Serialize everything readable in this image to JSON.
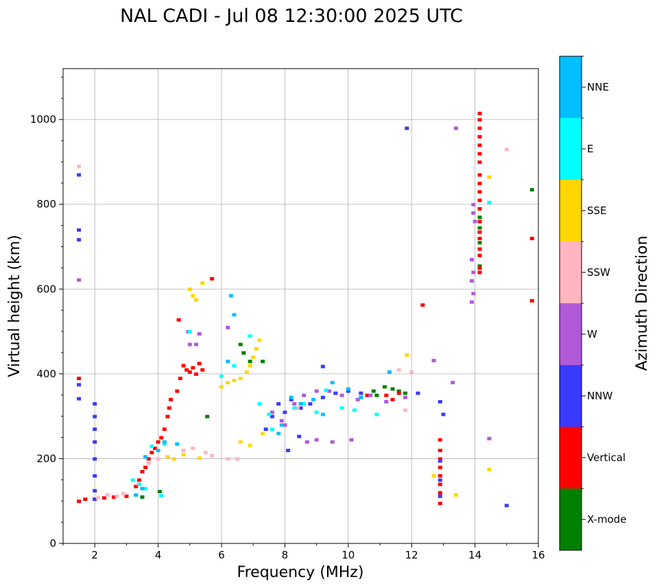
{
  "chart_data": {
    "type": "scatter",
    "title": "NAL CADI - Jul 08 12:30:00 2025 UTC",
    "xlabel": "Frequency (MHz)",
    "ylabel": "Virtual height (km)",
    "xlim": [
      1,
      16
    ],
    "ylim": [
      0,
      1120
    ],
    "xticks": [
      2,
      4,
      6,
      8,
      10,
      12,
      14,
      16
    ],
    "yticks": [
      0,
      200,
      400,
      600,
      800,
      1000
    ],
    "grid": true,
    "colorbar": {
      "label": "Azimuth Direction",
      "categories": [
        {
          "name": "X-mode",
          "color": "#008000"
        },
        {
          "name": "Vertical",
          "color": "#ff0000"
        },
        {
          "name": "NNW",
          "color": "#3a3aff"
        },
        {
          "name": "W",
          "color": "#b05ad8"
        },
        {
          "name": "SSW",
          "color": "#ffb6c1"
        },
        {
          "name": "SSE",
          "color": "#ffd700"
        },
        {
          "name": "E",
          "color": "#00ffff"
        },
        {
          "name": "NNE",
          "color": "#00bfff"
        }
      ]
    },
    "series": [
      {
        "name": "X-mode",
        "points": [
          [
            3.5,
            110
          ],
          [
            4.05,
            123
          ],
          [
            5.55,
            300
          ],
          [
            6.6,
            470
          ],
          [
            6.7,
            450
          ],
          [
            6.9,
            430
          ],
          [
            7.3,
            430
          ],
          [
            10.8,
            360
          ],
          [
            10.9,
            350
          ],
          [
            11.15,
            370
          ],
          [
            11.4,
            365
          ],
          [
            11.6,
            360
          ],
          [
            11.8,
            355
          ],
          [
            14.15,
            770
          ],
          [
            14.15,
            745
          ],
          [
            14.15,
            710
          ],
          [
            14.15,
            655
          ],
          [
            15.8,
            835
          ]
        ]
      },
      {
        "name": "Vertical",
        "points": [
          [
            1.5,
            100
          ],
          [
            1.7,
            105
          ],
          [
            2.0,
            105
          ],
          [
            2.3,
            108
          ],
          [
            2.6,
            110
          ],
          [
            3.0,
            112
          ],
          [
            3.3,
            135
          ],
          [
            3.4,
            150
          ],
          [
            3.5,
            170
          ],
          [
            3.6,
            180
          ],
          [
            3.7,
            200
          ],
          [
            3.8,
            215
          ],
          [
            3.9,
            225
          ],
          [
            4.0,
            240
          ],
          [
            4.1,
            250
          ],
          [
            4.2,
            270
          ],
          [
            4.3,
            300
          ],
          [
            4.35,
            320
          ],
          [
            4.4,
            340
          ],
          [
            4.6,
            360
          ],
          [
            4.7,
            390
          ],
          [
            4.8,
            420
          ],
          [
            4.9,
            410
          ],
          [
            5.0,
            405
          ],
          [
            5.1,
            415
          ],
          [
            5.2,
            400
          ],
          [
            5.3,
            425
          ],
          [
            5.4,
            410
          ],
          [
            4.65,
            528
          ],
          [
            5.7,
            625
          ],
          [
            1.5,
            390
          ],
          [
            11.2,
            350
          ],
          [
            11.4,
            340
          ],
          [
            11.6,
            355
          ],
          [
            10.6,
            350
          ],
          [
            12.35,
            563
          ],
          [
            12.9,
            220
          ],
          [
            12.9,
            200
          ],
          [
            12.9,
            180
          ],
          [
            12.9,
            160
          ],
          [
            12.9,
            140
          ],
          [
            12.9,
            120
          ],
          [
            12.9,
            95
          ],
          [
            12.9,
            245
          ],
          [
            14.15,
            1015
          ],
          [
            14.15,
            1000
          ],
          [
            14.15,
            980
          ],
          [
            14.15,
            960
          ],
          [
            14.15,
            940
          ],
          [
            14.15,
            920
          ],
          [
            14.15,
            900
          ],
          [
            14.15,
            870
          ],
          [
            14.15,
            850
          ],
          [
            14.15,
            830
          ],
          [
            14.15,
            810
          ],
          [
            14.15,
            790
          ],
          [
            14.15,
            760
          ],
          [
            14.15,
            735
          ],
          [
            14.15,
            720
          ],
          [
            14.15,
            695
          ],
          [
            14.15,
            680
          ],
          [
            14.15,
            650
          ],
          [
            14.15,
            640
          ],
          [
            15.8,
            720
          ],
          [
            15.8,
            573
          ]
        ]
      },
      {
        "name": "NNW",
        "points": [
          [
            1.5,
            870
          ],
          [
            1.5,
            740
          ],
          [
            1.5,
            717
          ],
          [
            1.5,
            375
          ],
          [
            1.5,
            342
          ],
          [
            2.0,
            330
          ],
          [
            2.0,
            300
          ],
          [
            2.0,
            270
          ],
          [
            2.0,
            240
          ],
          [
            2.0,
            200
          ],
          [
            2.0,
            160
          ],
          [
            2.0,
            125
          ],
          [
            2.0,
            105
          ],
          [
            7.4,
            270
          ],
          [
            7.6,
            300
          ],
          [
            7.8,
            330
          ],
          [
            8.0,
            310
          ],
          [
            8.2,
            340
          ],
          [
            8.5,
            320
          ],
          [
            8.8,
            330
          ],
          [
            9.2,
            345
          ],
          [
            9.6,
            355
          ],
          [
            10.0,
            360
          ],
          [
            10.4,
            355
          ],
          [
            8.1,
            220
          ],
          [
            8.45,
            253
          ],
          [
            9.2,
            418
          ],
          [
            11.85,
            980
          ],
          [
            12.2,
            355
          ],
          [
            12.9,
            335
          ],
          [
            13.0,
            305
          ],
          [
            12.9,
            195
          ],
          [
            12.9,
            150
          ],
          [
            12.9,
            112
          ],
          [
            15.0,
            90
          ]
        ]
      },
      {
        "name": "W",
        "points": [
          [
            1.5,
            622
          ],
          [
            4.95,
            500
          ],
          [
            5.0,
            470
          ],
          [
            5.2,
            470
          ],
          [
            5.3,
            495
          ],
          [
            6.2,
            510
          ],
          [
            7.6,
            310
          ],
          [
            7.9,
            290
          ],
          [
            8.0,
            280
          ],
          [
            8.3,
            330
          ],
          [
            8.6,
            350
          ],
          [
            9.0,
            360
          ],
          [
            9.4,
            360
          ],
          [
            9.8,
            350
          ],
          [
            10.3,
            340
          ],
          [
            10.7,
            350
          ],
          [
            11.2,
            335
          ],
          [
            11.8,
            345
          ],
          [
            8.7,
            240
          ],
          [
            9.0,
            245
          ],
          [
            9.5,
            240
          ],
          [
            10.1,
            245
          ],
          [
            12.7,
            432
          ],
          [
            13.3,
            380
          ],
          [
            13.4,
            980
          ],
          [
            13.9,
            670
          ],
          [
            13.95,
            640
          ],
          [
            13.9,
            620
          ],
          [
            13.95,
            590
          ],
          [
            13.9,
            570
          ],
          [
            13.95,
            800
          ],
          [
            13.95,
            780
          ],
          [
            14.0,
            760
          ],
          [
            14.45,
            248
          ]
        ]
      },
      {
        "name": "SSW",
        "points": [
          [
            1.5,
            890
          ],
          [
            2.1,
            108
          ],
          [
            2.4,
            115
          ],
          [
            2.7,
            112
          ],
          [
            2.9,
            118
          ],
          [
            3.3,
            115
          ],
          [
            3.7,
            190
          ],
          [
            4.0,
            200
          ],
          [
            4.8,
            220
          ],
          [
            5.1,
            225
          ],
          [
            5.5,
            215
          ],
          [
            5.7,
            208
          ],
          [
            6.2,
            200
          ],
          [
            6.5,
            200
          ],
          [
            8.4,
            320
          ],
          [
            11.6,
            410
          ],
          [
            12.0,
            405
          ],
          [
            11.8,
            315
          ],
          [
            15.0,
            930
          ]
        ]
      },
      {
        "name": "SSE",
        "points": [
          [
            5.0,
            600
          ],
          [
            5.1,
            585
          ],
          [
            5.2,
            575
          ],
          [
            5.4,
            615
          ],
          [
            6.0,
            370
          ],
          [
            6.2,
            380
          ],
          [
            6.4,
            385
          ],
          [
            6.6,
            390
          ],
          [
            6.8,
            405
          ],
          [
            6.9,
            420
          ],
          [
            7.0,
            440
          ],
          [
            7.1,
            460
          ],
          [
            7.2,
            480
          ],
          [
            4.3,
            205
          ],
          [
            4.5,
            200
          ],
          [
            4.8,
            210
          ],
          [
            5.3,
            202
          ],
          [
            6.6,
            240
          ],
          [
            6.9,
            232
          ],
          [
            7.3,
            260
          ],
          [
            11.85,
            445
          ],
          [
            12.7,
            160
          ],
          [
            13.4,
            115
          ],
          [
            14.45,
            865
          ],
          [
            14.45,
            175
          ]
        ]
      },
      {
        "name": "E",
        "points": [
          [
            3.2,
            150
          ],
          [
            3.4,
            140
          ],
          [
            3.6,
            130
          ],
          [
            3.8,
            230
          ],
          [
            4.2,
            235
          ],
          [
            5.0,
            500
          ],
          [
            6.0,
            395
          ],
          [
            6.4,
            420
          ],
          [
            6.9,
            490
          ],
          [
            7.2,
            330
          ],
          [
            7.5,
            305
          ],
          [
            7.6,
            270
          ],
          [
            8.3,
            320
          ],
          [
            8.6,
            330
          ],
          [
            9.0,
            310
          ],
          [
            9.3,
            362
          ],
          [
            9.8,
            320
          ],
          [
            10.2,
            315
          ],
          [
            10.9,
            305
          ],
          [
            11.3,
            405
          ],
          [
            14.45,
            805
          ],
          [
            4.1,
            113
          ]
        ]
      },
      {
        "name": "NNE",
        "points": [
          [
            3.3,
            115
          ],
          [
            3.5,
            130
          ],
          [
            3.6,
            205
          ],
          [
            4.2,
            240
          ],
          [
            4.0,
            220
          ],
          [
            6.3,
            585
          ],
          [
            6.4,
            540
          ],
          [
            6.2,
            430
          ],
          [
            7.8,
            260
          ],
          [
            7.9,
            280
          ],
          [
            8.2,
            345
          ],
          [
            8.5,
            330
          ],
          [
            8.9,
            340
          ],
          [
            9.2,
            305
          ],
          [
            9.5,
            380
          ],
          [
            10.0,
            365
          ],
          [
            10.4,
            345
          ],
          [
            11.3,
            405
          ],
          [
            4.6,
            235
          ]
        ]
      }
    ]
  }
}
